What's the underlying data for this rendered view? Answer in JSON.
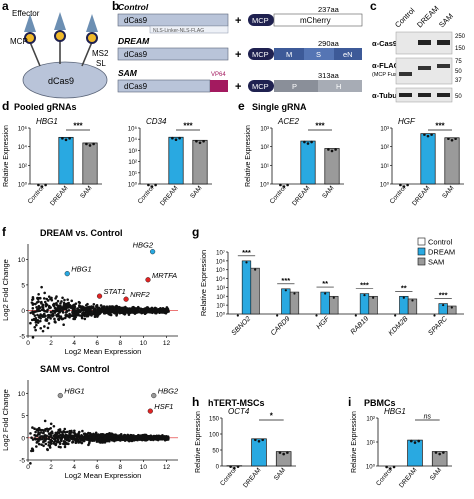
{
  "colors": {
    "control": "#ffffff",
    "dream": "#29a9e1",
    "sam": "#9a9a9a",
    "hl_blue": "#29a9e1",
    "hl_grey": "#9a9a9a",
    "hl_red": "#e02424",
    "dcas9": "#b9c4d9",
    "mcp": "#1f2150",
    "vp64": "#a31a5f",
    "blot_bg": "#e8e8e8"
  },
  "panels": {
    "a": {
      "letter": "a",
      "labels": {
        "effector": "Effector",
        "mcp": "MCP",
        "ms2": "MS2",
        "sl": "SL",
        "dcas9": "dCas9"
      }
    },
    "b": {
      "letter": "b",
      "rows": [
        {
          "title": "Control",
          "dcas9": "dCas9",
          "linker": "NLS-Linker-NLS-FLAG",
          "mcp": "MCP",
          "size": "237aa",
          "effector": "mCherry"
        },
        {
          "title": "DREAM",
          "dcas9": "dCas9",
          "mcp": "MCP",
          "size": "290aa",
          "effector": [
            "M",
            "S",
            "eN"
          ]
        },
        {
          "title": "SAM",
          "dcas9": "dCas9",
          "vp64": "VP64",
          "mcp": "MCP",
          "size": "313aa",
          "effector": [
            "P",
            "H"
          ]
        }
      ],
      "plus": "+"
    },
    "c": {
      "letter": "c",
      "lanes": [
        "Control",
        "DREAM",
        "SAM"
      ],
      "blots": [
        {
          "label": "α-Cas9",
          "mw": [
            "250",
            "150"
          ]
        },
        {
          "label": "α-FLAG",
          "sublabel": "(MCP Fusions)",
          "mw": [
            "75",
            "50",
            "37"
          ]
        },
        {
          "label": "α-Tubulin",
          "mw": [
            "50"
          ]
        }
      ]
    },
    "d": {
      "letter": "d",
      "title": "Pooled gRNAs"
    },
    "e": {
      "letter": "e",
      "title": "Single gRNA"
    },
    "f": {
      "letter": "f",
      "title1": "DREAM vs. Control",
      "title2": "SAM vs. Control"
    },
    "g": {
      "letter": "g"
    },
    "h": {
      "letter": "h",
      "title": "hTERT-MSCs"
    },
    "i": {
      "letter": "i",
      "title": "PBMCs"
    }
  },
  "chart_data": [
    {
      "id": "d1",
      "type": "bar",
      "title": "HBG1",
      "ylabel": "Relative Expression",
      "yscale": "log",
      "ylim": [
        1,
        1000000
      ],
      "yticks": [
        "10⁰",
        "10²",
        "10⁴",
        "10⁶"
      ],
      "categories": [
        "Control",
        "DREAM",
        "SAM"
      ],
      "values": [
        1,
        100000,
        25000
      ],
      "significance": "***"
    },
    {
      "id": "d2",
      "type": "bar",
      "title": "CD34",
      "yscale": "log",
      "ylim": [
        1,
        100000
      ],
      "yticks": [
        "10⁰",
        "10¹",
        "10²",
        "10³",
        "10⁴",
        "10⁵"
      ],
      "categories": [
        "Control",
        "DREAM",
        "SAM"
      ],
      "values": [
        1,
        15000,
        8000
      ],
      "significance": "***"
    },
    {
      "id": "e1",
      "type": "bar",
      "title": "ACE2",
      "ylabel": "Relative Expression",
      "yscale": "log",
      "ylim": [
        1,
        1000
      ],
      "yticks": [
        "10⁰",
        "10¹",
        "10²",
        "10³"
      ],
      "categories": [
        "Control",
        "DREAM",
        "SAM"
      ],
      "values": [
        1,
        200,
        80
      ],
      "significance": "***"
    },
    {
      "id": "e2",
      "type": "bar",
      "title": "HGF",
      "yscale": "log",
      "ylim": [
        1,
        1000
      ],
      "yticks": [
        "10⁰",
        "10¹",
        "10²",
        "10³"
      ],
      "categories": [
        "Control",
        "DREAM",
        "SAM"
      ],
      "values": [
        1,
        500,
        300
      ],
      "significance": "***"
    },
    {
      "id": "f1",
      "type": "scatter",
      "title": "DREAM vs. Control",
      "xlabel": "Log2 Mean Expression",
      "ylabel": "Log2 Fold Change",
      "xlim": [
        0,
        13
      ],
      "xticks": [
        0,
        2,
        4,
        6,
        8,
        10,
        12
      ],
      "ylim": [
        -5,
        13
      ],
      "yticks": [
        -5,
        0,
        5,
        10
      ],
      "annotations": [
        {
          "label": "HBG2",
          "x": 10.8,
          "y": 11.5,
          "color": "blue"
        },
        {
          "label": "HBG1",
          "x": 3.4,
          "y": 7.2,
          "color": "blue"
        },
        {
          "label": "MRTFA",
          "x": 10.4,
          "y": 6.0,
          "color": "red"
        },
        {
          "label": "STAT1",
          "x": 6.2,
          "y": 2.8,
          "color": "red"
        },
        {
          "label": "NRF2",
          "x": 8.5,
          "y": 2.2,
          "color": "red"
        }
      ]
    },
    {
      "id": "f2",
      "type": "scatter",
      "title": "SAM vs. Control",
      "xlabel": "Log2 Mean Expression",
      "ylabel": "Log2 Fold Change",
      "xlim": [
        0,
        13
      ],
      "xticks": [
        0,
        2,
        4,
        6,
        8,
        10,
        12
      ],
      "ylim": [
        -5,
        13
      ],
      "yticks": [
        -5,
        0,
        5,
        10
      ],
      "annotations": [
        {
          "label": "HBG1",
          "x": 2.8,
          "y": 9.5,
          "color": "grey"
        },
        {
          "label": "HBG2",
          "x": 10.9,
          "y": 9.5,
          "color": "grey"
        },
        {
          "label": "HSF1",
          "x": 10.6,
          "y": 6.0,
          "color": "red"
        }
      ]
    },
    {
      "id": "g",
      "type": "bar",
      "ylabel": "Relative Expression",
      "yscale": "log",
      "ylim": [
        1,
        10000000
      ],
      "yticks": [
        "10⁰",
        "10¹",
        "10²",
        "10³",
        "10⁴",
        "10⁵",
        "10⁶",
        "10⁷"
      ],
      "categories": [
        "SBNO2",
        "CARD9",
        "HGF",
        "RAB19",
        "KDM2B",
        "SPARC"
      ],
      "legend": [
        "Control",
        "DREAM",
        "SAM"
      ],
      "legend_position": "top-right",
      "series": [
        {
          "name": "Control",
          "values": [
            1,
            1,
            1,
            1,
            1,
            1
          ]
        },
        {
          "name": "DREAM",
          "values": [
            1000000,
            700,
            300,
            200,
            100,
            15
          ]
        },
        {
          "name": "SAM",
          "values": [
            150000,
            300,
            100,
            100,
            50,
            8
          ]
        }
      ],
      "significance": [
        "***",
        "***",
        "**",
        "***",
        "**",
        "***"
      ]
    },
    {
      "id": "h",
      "type": "bar",
      "title": "OCT4",
      "ylabel": "Relative Expression",
      "ylim": [
        0,
        150
      ],
      "yticks": [
        "0",
        "50",
        "100",
        "150"
      ],
      "categories": [
        "Control",
        "DREAM",
        "SAM"
      ],
      "values": [
        1,
        85,
        45
      ],
      "significance": "*"
    },
    {
      "id": "i",
      "type": "bar",
      "title": "HBG1",
      "ylabel": "Relative Expression",
      "yscale": "log",
      "ylim": [
        1,
        100
      ],
      "yticks": [
        "10⁰",
        "10¹",
        "10²"
      ],
      "categories": [
        "Control",
        "DREAM",
        "SAM"
      ],
      "values": [
        1,
        12,
        4
      ],
      "significance": "ns"
    }
  ]
}
